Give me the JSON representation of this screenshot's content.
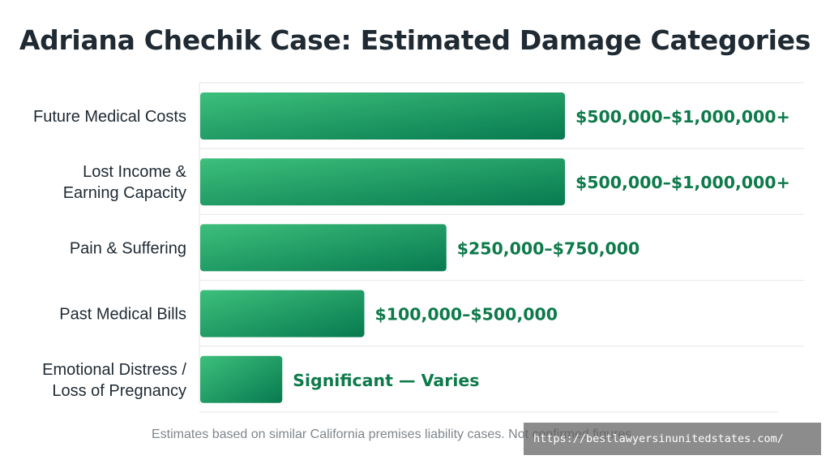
{
  "chart_data": {
    "type": "bar",
    "orientation": "horizontal",
    "title": "Adriana Chechik Case: Estimated Damage Categories",
    "categories": [
      [
        "Future Medical Costs"
      ],
      [
        "Lost Income &",
        "Earning Capacity"
      ],
      [
        "Pain & Suffering"
      ],
      [
        "Past Medical Bills"
      ],
      [
        "Emotional Distress /",
        "Loss of Pregnancy"
      ]
    ],
    "values": [
      1000000,
      1000000,
      675000,
      450000,
      225000
    ],
    "data_labels": [
      "$500,000–$1,000,000+",
      "$500,000–$1,000,000+",
      "$250,000–$750,000",
      "$100,000–$500,000",
      "Significant — Varies"
    ],
    "xlim": [
      0,
      1000000
    ],
    "grid": true,
    "bar_color_start": "#3dbf7c",
    "bar_color_end": "#077a4f",
    "label_color": "#0d7a4a",
    "gridline_color": "#e6e6e6"
  },
  "footnote": "Estimates based on similar California premises liability cases. Not confirmed figures.",
  "watermark": "https://bestlawyersinunitedstates.com/"
}
